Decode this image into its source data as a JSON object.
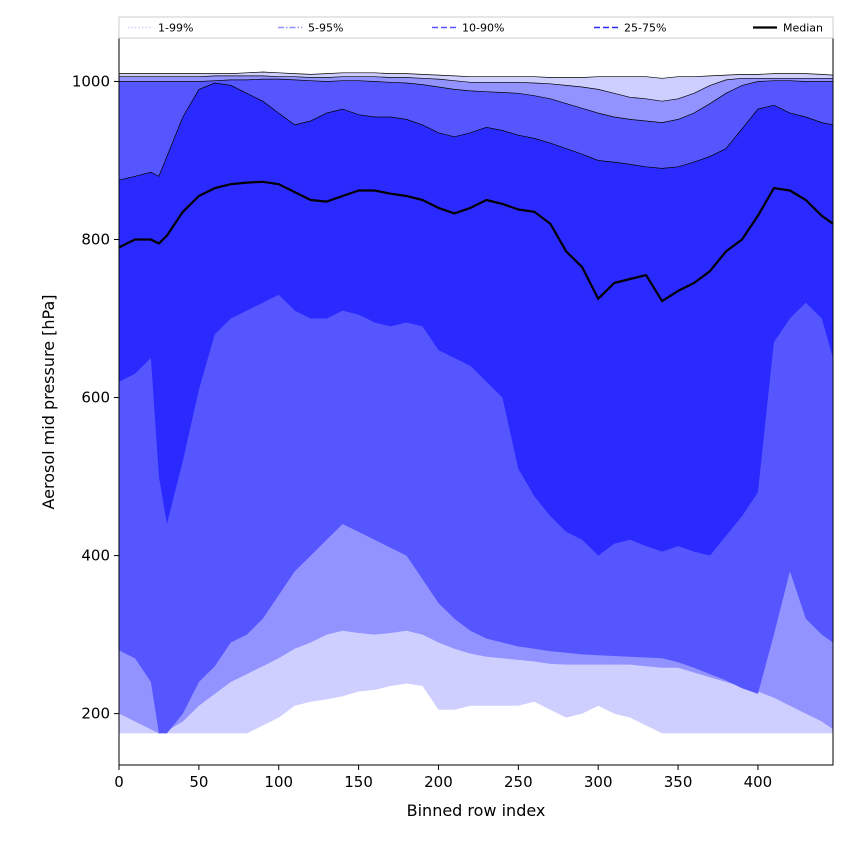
{
  "chart_data": {
    "type": "area",
    "title": "",
    "xlabel": "Binned row index",
    "ylabel": "Aerosol mid pressure [hPa]",
    "xlim": [
      0,
      447
    ],
    "ylim": [
      135,
      1055
    ],
    "xticks": [
      0,
      50,
      100,
      150,
      200,
      250,
      300,
      350,
      400
    ],
    "yticks": [
      200,
      400,
      600,
      800,
      1000
    ],
    "grid": false,
    "legend_position": "top",
    "colors": {
      "band_1_99": "#cfcfff",
      "band_5_95": "#9393ff",
      "band_10_90": "#5656ff",
      "band_25_75": "#2a2aff",
      "median": "#000000"
    },
    "legend": [
      {
        "label": "1-99%",
        "key": "band_1_99",
        "style": "dotted"
      },
      {
        "label": "5-95%",
        "key": "band_5_95",
        "style": "dashdot"
      },
      {
        "label": "10-90%",
        "key": "band_10_90",
        "style": "dashed"
      },
      {
        "label": "25-75%",
        "key": "band_25_75",
        "style": "dashed"
      },
      {
        "label": "Median",
        "key": "median",
        "style": "solid"
      }
    ],
    "x": [
      0,
      10,
      20,
      25,
      30,
      40,
      50,
      60,
      70,
      80,
      90,
      100,
      110,
      120,
      130,
      140,
      150,
      160,
      170,
      180,
      190,
      200,
      210,
      220,
      230,
      240,
      250,
      260,
      270,
      280,
      290,
      300,
      310,
      320,
      330,
      340,
      350,
      360,
      370,
      380,
      390,
      400,
      410,
      420,
      430,
      440,
      447
    ],
    "bands": [
      {
        "name": "1-99%",
        "key": "band_1_99",
        "lower": [
          175,
          175,
          175,
          175,
          175,
          175,
          175,
          175,
          175,
          175,
          185,
          195,
          210,
          215,
          218,
          222,
          228,
          230,
          235,
          238,
          235,
          205,
          205,
          210,
          210,
          210,
          210,
          215,
          205,
          195,
          200,
          210,
          200,
          195,
          185,
          175,
          175,
          175,
          175,
          175,
          175,
          175,
          175,
          175,
          175,
          175,
          175
        ],
        "upper": [
          1010,
          1010,
          1010,
          1010,
          1010,
          1010,
          1010,
          1010,
          1010,
          1011,
          1012,
          1011,
          1010,
          1009,
          1010,
          1011,
          1011,
          1011,
          1010,
          1010,
          1009,
          1008,
          1007,
          1006,
          1006,
          1006,
          1006,
          1006,
          1005,
          1005,
          1005,
          1006,
          1006,
          1006,
          1006,
          1004,
          1006,
          1006,
          1007,
          1008,
          1009,
          1009,
          1010,
          1010,
          1010,
          1009,
          1008
        ]
      },
      {
        "name": "5-95%",
        "key": "band_5_95",
        "lower": [
          200,
          190,
          180,
          175,
          178,
          190,
          210,
          225,
          240,
          250,
          260,
          270,
          282,
          290,
          300,
          305,
          302,
          300,
          302,
          305,
          300,
          290,
          282,
          276,
          272,
          270,
          268,
          266,
          263,
          262,
          262,
          262,
          262,
          262,
          260,
          258,
          258,
          252,
          246,
          240,
          234,
          228,
          220,
          210,
          200,
          190,
          180
        ],
        "upper": [
          1006,
          1006,
          1006,
          1006,
          1006,
          1006,
          1006,
          1007,
          1007,
          1007,
          1007,
          1006,
          1006,
          1005,
          1005,
          1006,
          1006,
          1006,
          1005,
          1005,
          1004,
          1003,
          1001,
          999,
          999,
          999,
          999,
          998,
          997,
          995,
          993,
          990,
          985,
          980,
          978,
          975,
          978,
          985,
          995,
          1002,
          1004,
          1004,
          1004,
          1004,
          1004,
          1004,
          1004
        ]
      },
      {
        "name": "10-90%",
        "key": "band_10_90",
        "lower": [
          280,
          270,
          240,
          175,
          175,
          200,
          240,
          260,
          290,
          300,
          320,
          350,
          380,
          400,
          420,
          440,
          430,
          420,
          410,
          400,
          370,
          340,
          320,
          305,
          295,
          290,
          285,
          282,
          279,
          277,
          275,
          274,
          273,
          272,
          271,
          270,
          265,
          258,
          250,
          242,
          232,
          225,
          300,
          380,
          320,
          300,
          290
        ],
        "upper": [
          1000,
          1000,
          1000,
          1000,
          1000,
          1000,
          1000,
          1001,
          1002,
          1002,
          1003,
          1003,
          1002,
          1001,
          1000,
          1001,
          1001,
          1000,
          999,
          998,
          996,
          993,
          990,
          988,
          987,
          986,
          985,
          982,
          978,
          972,
          966,
          960,
          955,
          952,
          950,
          948,
          952,
          960,
          972,
          985,
          995,
          1000,
          1001,
          1001,
          1000,
          1000,
          1000
        ]
      },
      {
        "name": "25-75%",
        "key": "band_25_75",
        "lower": [
          620,
          630,
          650,
          500,
          440,
          520,
          610,
          680,
          700,
          710,
          720,
          730,
          710,
          700,
          700,
          710,
          705,
          695,
          690,
          695,
          690,
          660,
          650,
          640,
          620,
          600,
          510,
          475,
          450,
          430,
          420,
          400,
          415,
          420,
          412,
          405,
          412,
          405,
          400,
          425,
          450,
          480,
          670,
          700,
          720,
          700,
          650
        ],
        "upper": [
          875,
          880,
          885,
          880,
          905,
          955,
          990,
          998,
          995,
          985,
          975,
          960,
          945,
          950,
          960,
          965,
          958,
          955,
          955,
          952,
          945,
          935,
          930,
          935,
          942,
          938,
          932,
          928,
          922,
          915,
          908,
          900,
          898,
          895,
          892,
          890,
          892,
          898,
          905,
          915,
          940,
          965,
          970,
          960,
          955,
          948,
          945
        ]
      }
    ],
    "median": {
      "name": "Median",
      "values": [
        790,
        800,
        800,
        795,
        805,
        835,
        855,
        865,
        870,
        872,
        873,
        870,
        860,
        850,
        848,
        855,
        862,
        862,
        858,
        855,
        850,
        840,
        833,
        840,
        850,
        845,
        838,
        835,
        820,
        785,
        765,
        725,
        745,
        750,
        755,
        722,
        735,
        745,
        760,
        785,
        800,
        830,
        865,
        862,
        850,
        830,
        820
      ]
    }
  }
}
